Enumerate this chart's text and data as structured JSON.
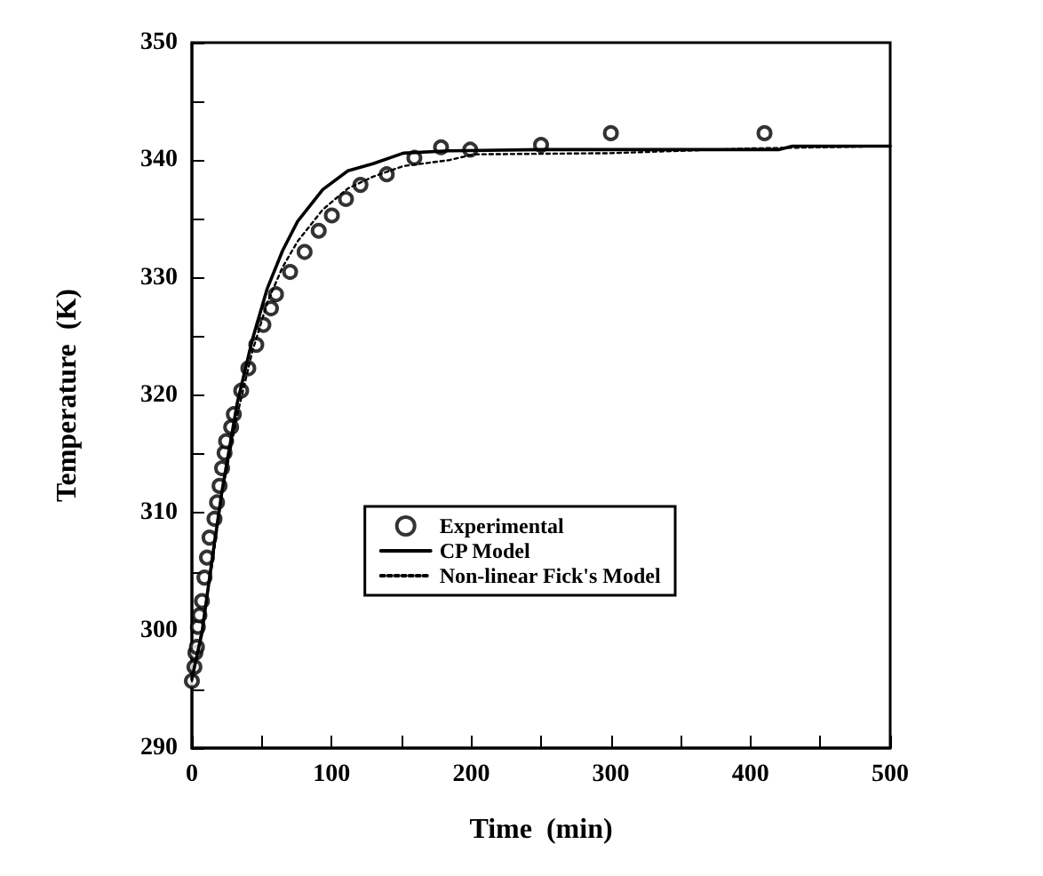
{
  "chart_data": {
    "type": "scatter",
    "xlabel": "Time  (min)",
    "ylabel": "Temperature  (K)",
    "xlim": [
      0,
      500
    ],
    "ylim": [
      290,
      350
    ],
    "xticks": [
      0,
      {
        "value": 50,
        "label": null
      },
      100,
      {
        "value": 150,
        "label": null
      },
      200,
      {
        "value": 250,
        "label": null
      },
      300,
      {
        "value": 350,
        "label": null
      },
      400,
      {
        "value": 450,
        "label": null
      },
      500
    ],
    "yticks": [
      290,
      {
        "value": 295,
        "label": null
      },
      300,
      {
        "value": 305,
        "label": null
      },
      310,
      {
        "value": 315,
        "label": null
      },
      320,
      {
        "value": 325,
        "label": null
      },
      330,
      {
        "value": 335,
        "label": null
      },
      340,
      {
        "value": 345,
        "label": null
      },
      350
    ],
    "legend": "bottom right",
    "grid": false,
    "series": [
      {
        "name": "Experimental",
        "marker": "circle",
        "color": "#000000",
        "x": [
          0,
          1.8,
          2.5,
          3.6,
          4.3,
          5.4,
          7.2,
          9,
          10.8,
          12.6,
          16.2,
          18,
          19.8,
          21.6,
          23.4,
          24.5,
          28.1,
          30,
          35.3,
          40.4,
          46.1,
          51.2,
          56.6,
          60.2,
          70.3,
          80.7,
          90.8,
          100.2,
          110.3,
          120.7,
          139.5,
          159.3,
          178.4,
          199.3,
          250,
          300,
          410
        ],
        "values": [
          295.7,
          296.9,
          298.1,
          298.6,
          300.3,
          301.3,
          302.5,
          304.5,
          306.2,
          307.9,
          309.5,
          310.9,
          312.3,
          313.8,
          315.1,
          316.1,
          317.3,
          318.4,
          320.4,
          322.3,
          324.3,
          326,
          327.4,
          328.6,
          330.5,
          332.2,
          334,
          335.3,
          336.7,
          337.9,
          338.8,
          340.2,
          341.1,
          340.9,
          341.3,
          342.3,
          342.3
        ]
      },
      {
        "name": "CP Model",
        "type": "line",
        "line_style": "solid",
        "color": "#000000",
        "x": [
          0,
          7.2,
          14.4,
          21.6,
          32.4,
          43.2,
          54,
          64.9,
          75.7,
          93.7,
          111.7,
          129.7,
          151.4,
          183.8,
          250,
          300,
          350,
          420,
          430,
          500
        ],
        "values": [
          295.9,
          299.8,
          306,
          311.9,
          319.3,
          324.7,
          329.1,
          332.3,
          334.8,
          337.5,
          339.1,
          339.7,
          340.6,
          340.8,
          340.9,
          340.9,
          340.9,
          340.9,
          341.2,
          341.2
        ]
      },
      {
        "name": "Non-linear Fick's Model",
        "type": "line",
        "line_style": "dotted",
        "color": "#000000",
        "x": [
          0,
          7.2,
          14.4,
          21.6,
          32.4,
          43.2,
          54,
          64.9,
          75.7,
          93.7,
          111.7,
          129.7,
          151.4,
          183.8,
          201.8,
          300,
          400,
          500
        ],
        "values": [
          295.7,
          300.1,
          305.5,
          311.7,
          318.3,
          323.7,
          327.9,
          330.9,
          333.1,
          335.8,
          337.6,
          338.6,
          339.5,
          340,
          340.5,
          340.6,
          341,
          341.2
        ]
      }
    ]
  }
}
